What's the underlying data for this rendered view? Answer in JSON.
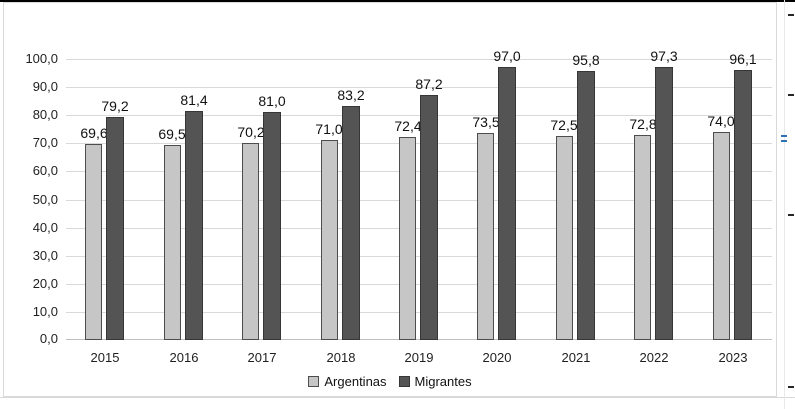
{
  "chart_data": {
    "type": "bar",
    "title": "",
    "xlabel": "",
    "ylabel": "",
    "categories": [
      "2015",
      "2016",
      "2017",
      "2018",
      "2019",
      "2020",
      "2021",
      "2022",
      "2023"
    ],
    "series": [
      {
        "name": "Argentinas",
        "values": [
          69.6,
          69.5,
          70.2,
          71.0,
          72.4,
          73.5,
          72.5,
          72.8,
          74.0
        ],
        "labels": [
          "69,6",
          "69,5",
          "70,2",
          "71,0",
          "72,4",
          "73,5",
          "72,5",
          "72,8",
          "74,0"
        ],
        "fill": "#c6c6c6",
        "border": "#4d4d4d"
      },
      {
        "name": "Migrantes",
        "values": [
          79.2,
          81.4,
          81.0,
          83.2,
          87.2,
          97.0,
          95.8,
          97.3,
          96.1
        ],
        "labels": [
          "79,2",
          "81,4",
          "81,0",
          "83,2",
          "87,2",
          "97,0",
          "95,8",
          "97,3",
          "96,1"
        ],
        "fill": "#545454",
        "border": "#363636"
      }
    ],
    "ylim": [
      0,
      100
    ],
    "ytick_step": 10,
    "ytick_labels": [
      "0,0",
      "10,0",
      "20,0",
      "30,0",
      "40,0",
      "50,0",
      "60,0",
      "70,0",
      "80,0",
      "90,0",
      "100,0"
    ],
    "grid": true,
    "legend_position": "bottom",
    "legend_entries": [
      "Argentinas",
      "Migrantes"
    ]
  },
  "colors": {
    "gridline": "#d9d9d9",
    "axis_line": "#bfbfbf",
    "frame_border": "#d9d9d9",
    "top_rule": "#000000",
    "text": "#1f1f1f",
    "edge_mark": "#262626",
    "edge_mark_blue": "#2e74b5"
  }
}
